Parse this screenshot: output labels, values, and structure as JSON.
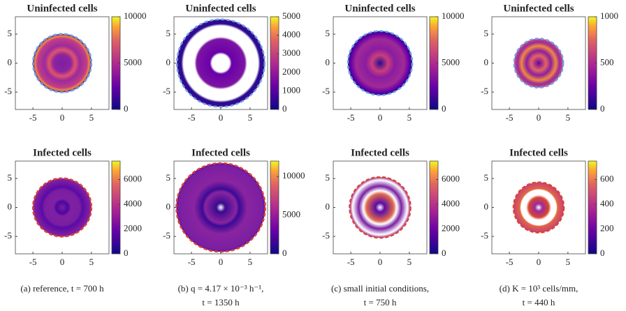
{
  "chart_data": [
    {
      "type": "heatmap",
      "title": "Uninfected cells",
      "xlim": [
        -8,
        8
      ],
      "ylim": [
        -8,
        8
      ],
      "xticks": [
        -5,
        0,
        5
      ],
      "yticks": [
        -5,
        0,
        5
      ],
      "clim": [
        0,
        10000
      ],
      "cticks": [
        0,
        5000,
        10000
      ]
    },
    {
      "type": "heatmap",
      "title": "Uninfected cells",
      "xlim": [
        -8,
        8
      ],
      "ylim": [
        -8,
        8
      ],
      "xticks": [
        -5,
        0,
        5
      ],
      "yticks": [
        -5,
        0,
        5
      ],
      "clim": [
        0,
        5000
      ],
      "cticks": [
        0,
        1000,
        2000,
        3000,
        4000,
        5000
      ]
    },
    {
      "type": "heatmap",
      "title": "Uninfected cells",
      "xlim": [
        -8,
        8
      ],
      "ylim": [
        -8,
        8
      ],
      "xticks": [
        -5,
        0,
        5
      ],
      "yticks": [
        -5,
        0,
        5
      ],
      "clim": [
        0,
        10000
      ],
      "cticks": [
        0,
        5000,
        10000
      ]
    },
    {
      "type": "heatmap",
      "title": "Uninfected cells",
      "xlim": [
        -8,
        8
      ],
      "ylim": [
        -8,
        8
      ],
      "xticks": [
        -5,
        0,
        5
      ],
      "yticks": [
        -5,
        0,
        5
      ],
      "clim": [
        0,
        1000
      ],
      "cticks": [
        0,
        500,
        1000
      ]
    },
    {
      "type": "heatmap",
      "title": "Infected cells",
      "xlim": [
        -8,
        8
      ],
      "ylim": [
        -8,
        8
      ],
      "xticks": [
        -5,
        0,
        5
      ],
      "yticks": [
        -5,
        0,
        5
      ],
      "clim": [
        0,
        7500
      ],
      "cticks": [
        0,
        2000,
        4000,
        6000
      ]
    },
    {
      "type": "heatmap",
      "title": "Infected cells",
      "xlim": [
        -8,
        8
      ],
      "ylim": [
        -8,
        8
      ],
      "xticks": [
        -5,
        0,
        5
      ],
      "yticks": [
        -5,
        0,
        5
      ],
      "clim": [
        0,
        12000
      ],
      "cticks": [
        0,
        5000,
        10000
      ]
    },
    {
      "type": "heatmap",
      "title": "Infected cells",
      "xlim": [
        -8,
        8
      ],
      "ylim": [
        -8,
        8
      ],
      "xticks": [
        -5,
        0,
        5
      ],
      "yticks": [
        -5,
        0,
        5
      ],
      "clim": [
        0,
        7500
      ],
      "cticks": [
        0,
        2000,
        4000,
        6000
      ]
    },
    {
      "type": "heatmap",
      "title": "Infected cells",
      "xlim": [
        -8,
        8
      ],
      "ylim": [
        -8,
        8
      ],
      "xticks": [
        -5,
        0,
        5
      ],
      "yticks": [
        -5,
        0,
        5
      ],
      "clim": [
        0,
        750
      ],
      "cticks": [
        0,
        200,
        400,
        600
      ]
    }
  ],
  "captions": [
    [
      "(a) reference, t = 700 h"
    ],
    [
      "(b) q = 4.17 × 10⁻³ h⁻¹,",
      "t = 1350 h"
    ],
    [
      "(c) small initial conditions,",
      "t = 750 h"
    ],
    [
      "(d) K = 10³ cells/mm,",
      "t = 440 h"
    ]
  ]
}
